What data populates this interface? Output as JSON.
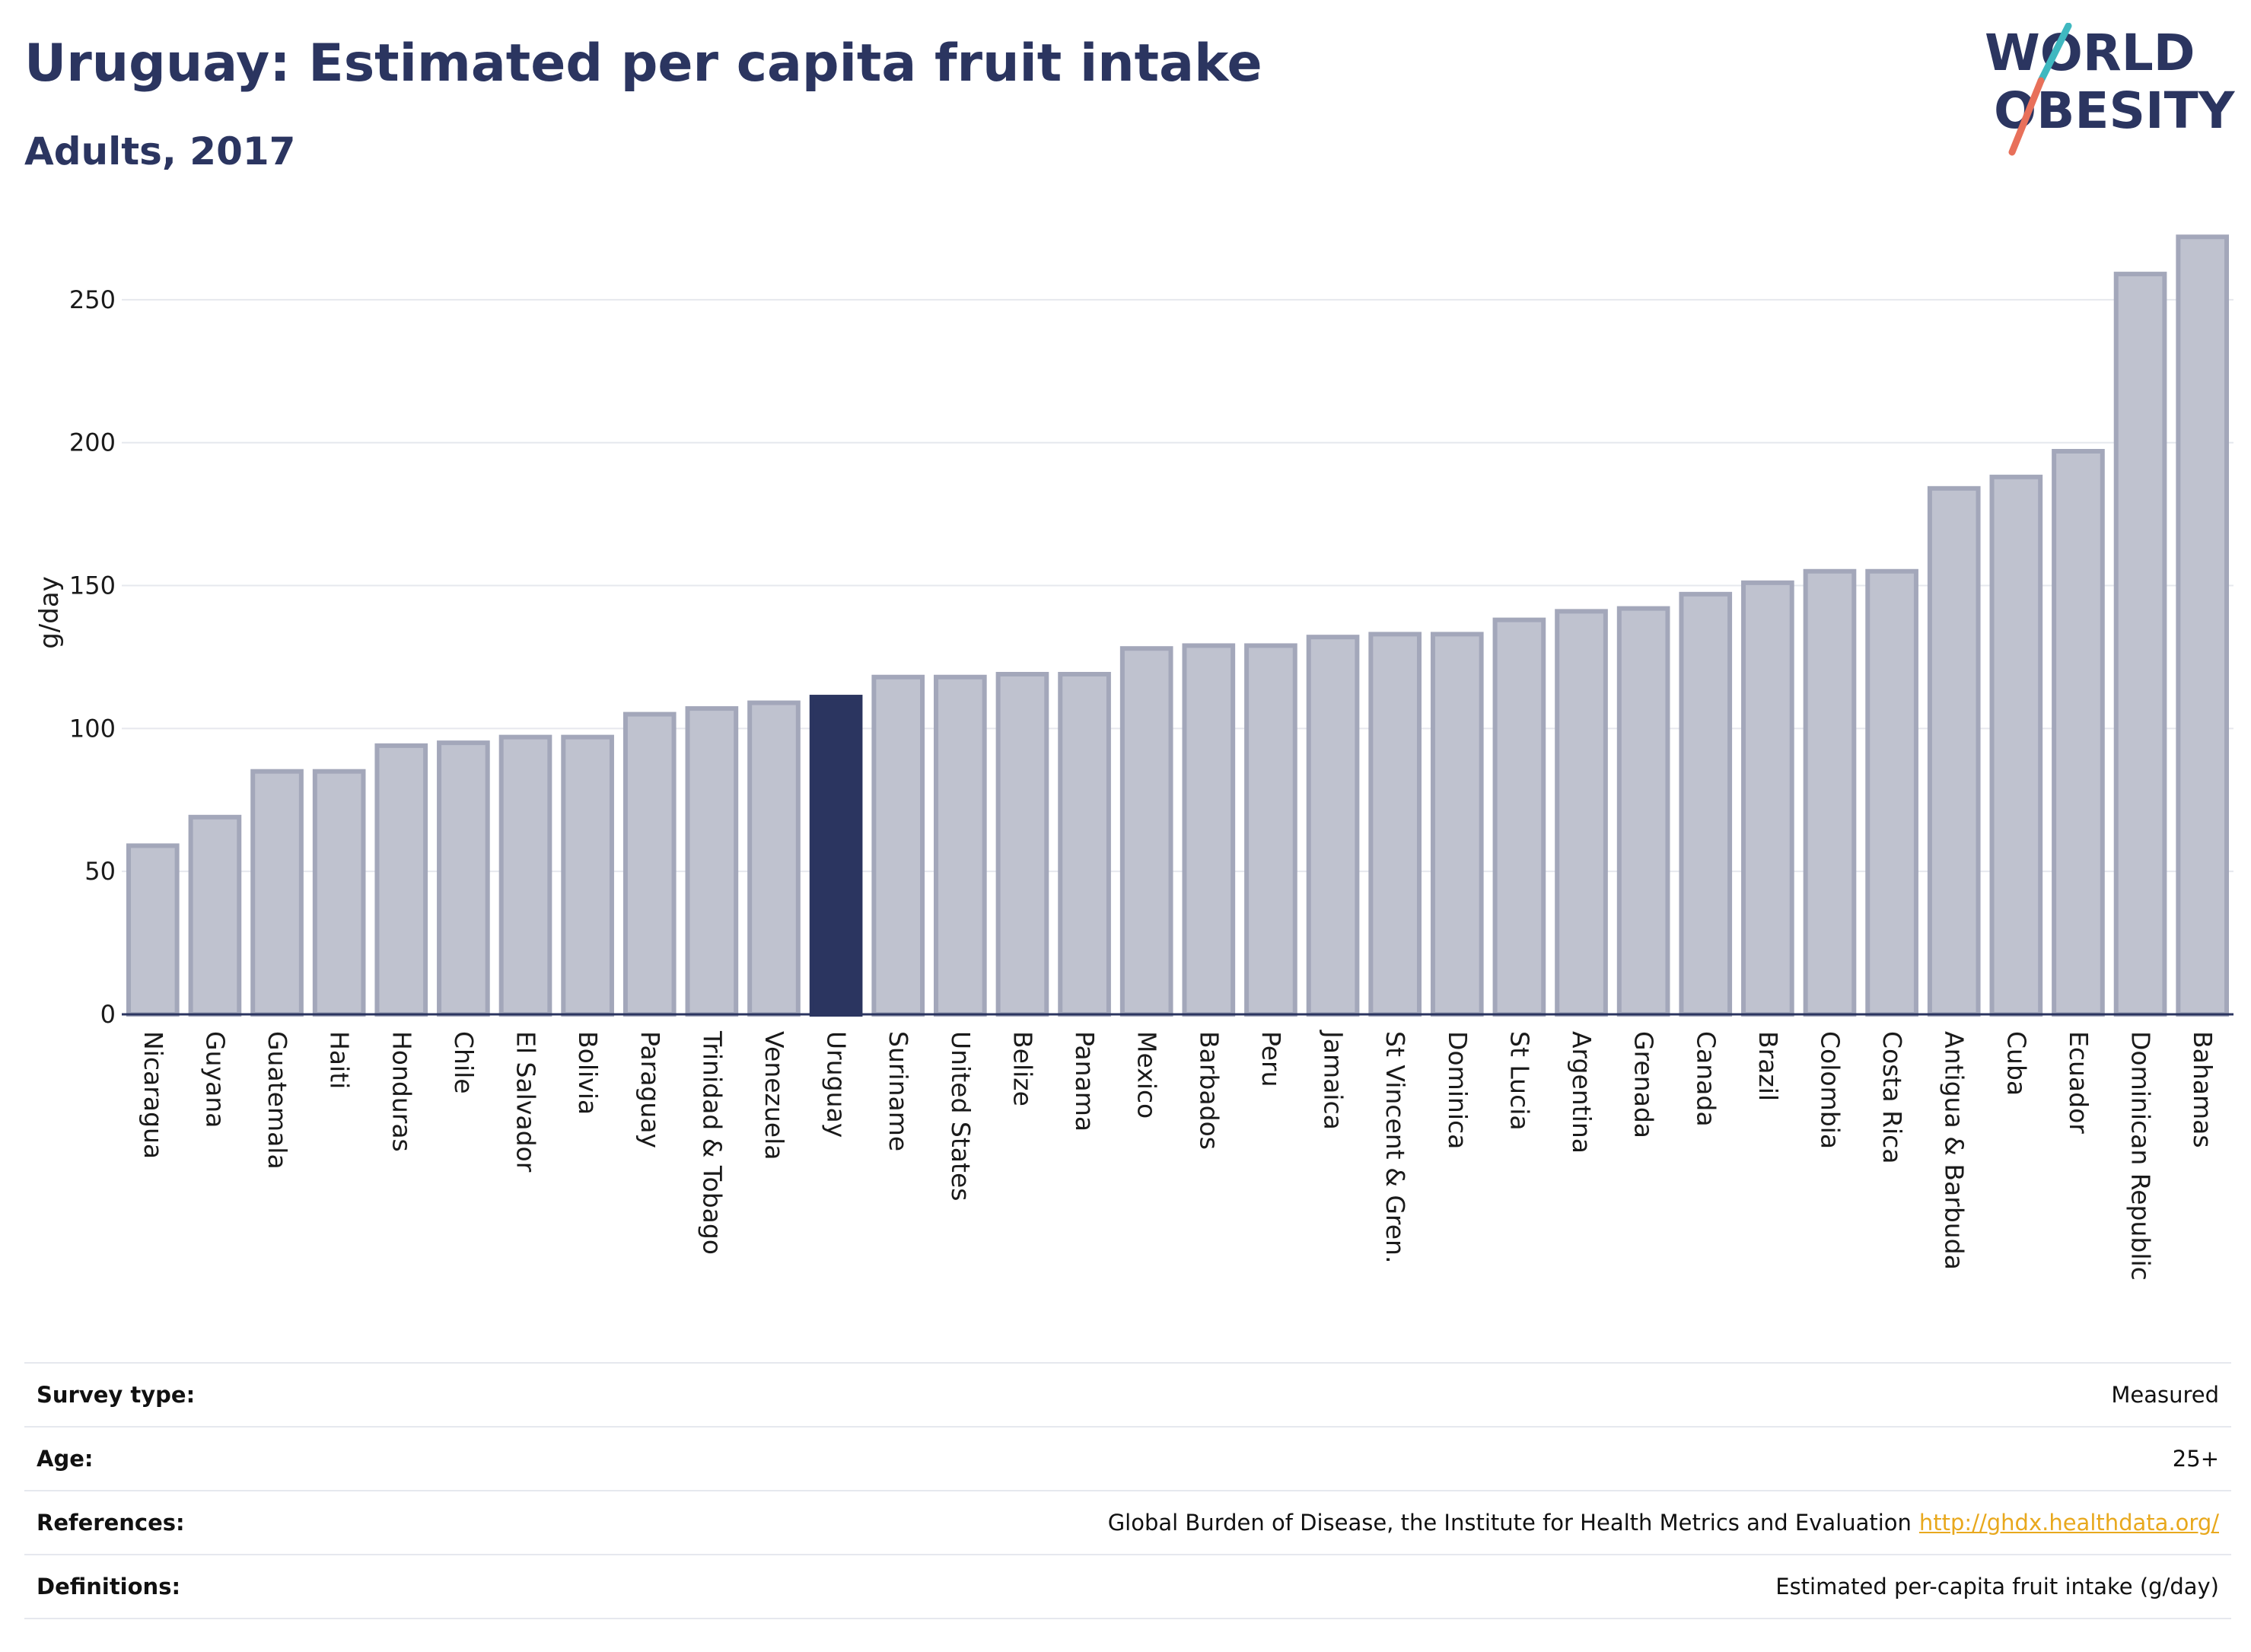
{
  "header": {
    "title": "Uruguay: Estimated per capita fruit intake",
    "subtitle": "Adults, 2017"
  },
  "logo": {
    "line1": "WORLD",
    "line2": "OBESITY",
    "accent_teal": "#3fb8c0",
    "accent_coral": "#e8705a"
  },
  "colors": {
    "bar_default": "#bfc2cf",
    "bar_outline": "#a3a7ba",
    "bar_highlight": "#2b3560",
    "grid": "#e6e8ee",
    "axis": "#2b3560"
  },
  "chart_data": {
    "type": "bar",
    "ylabel": "g/day",
    "ylim": [
      0,
      275
    ],
    "yticks": [
      0,
      50,
      100,
      150,
      200,
      250
    ],
    "grid": true,
    "highlight": "Uruguay",
    "categories": [
      "Nicaragua",
      "Guyana",
      "Guatemala",
      "Haiti",
      "Honduras",
      "Chile",
      "El Salvador",
      "Bolivia",
      "Paraguay",
      "Trinidad & Tobago",
      "Venezuela",
      "Uruguay",
      "Suriname",
      "United States",
      "Belize",
      "Panama",
      "Mexico",
      "Barbados",
      "Peru",
      "Jamaica",
      "St Vincent & Gren.",
      "Dominica",
      "St Lucia",
      "Argentina",
      "Grenada",
      "Canada",
      "Brazil",
      "Colombia",
      "Costa Rica",
      "Antigua & Barbuda",
      "Cuba",
      "Ecuador",
      "Dominican Republic",
      "Bahamas"
    ],
    "values": [
      59,
      69,
      85,
      85,
      94,
      95,
      97,
      97,
      105,
      107,
      109,
      111,
      118,
      118,
      119,
      119,
      128,
      129,
      129,
      132,
      133,
      133,
      138,
      141,
      142,
      147,
      151,
      155,
      155,
      184,
      188,
      197,
      259,
      272
    ]
  },
  "info": {
    "rows": [
      {
        "label": "Survey type:",
        "value": "Measured"
      },
      {
        "label": "Age:",
        "value": "25+"
      },
      {
        "label": "References:",
        "value": "Global Burden of Disease, the Institute for Health Metrics and Evaluation",
        "link": "http://ghdx.healthdata.org/"
      },
      {
        "label": "Definitions:",
        "value": "Estimated per-capita fruit intake (g/day)"
      }
    ]
  }
}
